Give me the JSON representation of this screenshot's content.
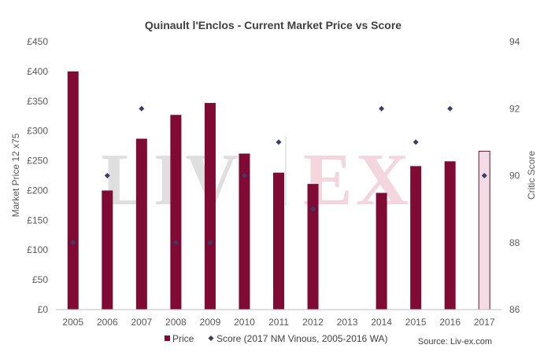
{
  "chart_data": {
    "type": "bar",
    "title": "Quinault l'Enclos - Current Market Price vs Score",
    "categories": [
      "2005",
      "2006",
      "2007",
      "2008",
      "2009",
      "2010",
      "2011",
      "2012",
      "2013",
      "2014",
      "2015",
      "2016",
      "2017"
    ],
    "series": [
      {
        "name": "Price",
        "type": "bar",
        "axis": "left",
        "values": [
          400,
          200,
          287,
          327,
          347,
          262,
          230,
          211,
          null,
          196,
          241,
          249,
          266
        ],
        "color": "#7f0b35",
        "highlight_last": true
      },
      {
        "name": "Score (2017 NM Vinous, 2005-2016 WA)",
        "type": "scatter",
        "axis": "right",
        "values": [
          88,
          90,
          92,
          88,
          88,
          90,
          91,
          89,
          null,
          92,
          91,
          92,
          90
        ],
        "color": "#3d3b68"
      }
    ],
    "y_left": {
      "label": "Market Price 12 x75",
      "range": [
        0,
        450
      ],
      "ticks": [
        "£0",
        "£50",
        "£100",
        "£150",
        "£200",
        "£250",
        "£300",
        "£350",
        "£400",
        "£450"
      ]
    },
    "y_right": {
      "label": "Critic Score",
      "range": [
        86,
        94
      ],
      "ticks": [
        "86",
        "88",
        "90",
        "92",
        "94"
      ]
    },
    "grid": false,
    "legend_position": "bottom",
    "source": "Source: Liv-ex.com",
    "watermark": "LIV-EX"
  }
}
